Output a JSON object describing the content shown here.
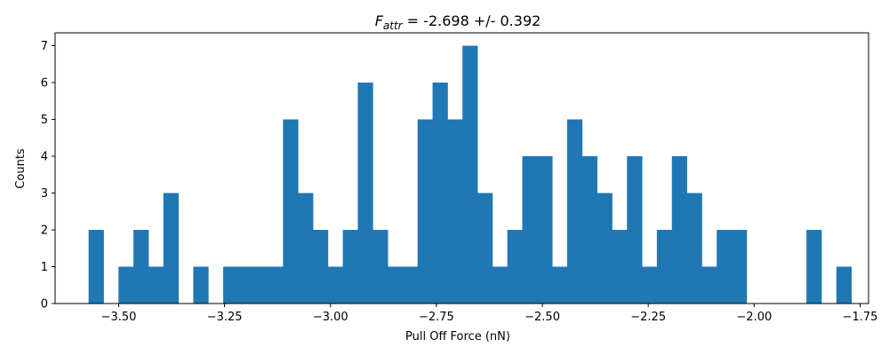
{
  "chart_data": {
    "type": "bar",
    "subtype": "histogram",
    "title": {
      "main": "F",
      "subscript": "attr",
      "suffix": " = -2.698 +/- 0.392"
    },
    "xlabel": "Pull Off Force (nN)",
    "ylabel": "Counts",
    "xlim": [
      -3.65,
      -1.73
    ],
    "ylim": [
      0,
      7.35
    ],
    "xticks": [
      -3.5,
      -3.25,
      -3.0,
      -2.75,
      -2.5,
      -2.25,
      -2.0,
      -1.75
    ],
    "xtick_labels": [
      "−3.50",
      "−3.25",
      "−3.00",
      "−2.75",
      "−2.50",
      "−2.25",
      "−2.00",
      "−1.75"
    ],
    "yticks": [
      0,
      1,
      2,
      3,
      4,
      5,
      6,
      7
    ],
    "ytick_labels": [
      "0",
      "1",
      "2",
      "3",
      "4",
      "5",
      "6",
      "7"
    ],
    "bin_start": -3.571,
    "bin_width": 0.0353,
    "counts": [
      2,
      0,
      1,
      2,
      1,
      3,
      0,
      1,
      0,
      1,
      1,
      1,
      1,
      5,
      3,
      2,
      1,
      2,
      6,
      2,
      1,
      1,
      5,
      6,
      5,
      7,
      3,
      1,
      2,
      4,
      4,
      1,
      5,
      4,
      3,
      2,
      4,
      1,
      2,
      4,
      3,
      1,
      2,
      2,
      0,
      0,
      0,
      0,
      2,
      0,
      1
    ],
    "bar_color": "#1f77b4",
    "grid": false,
    "legend": "none"
  }
}
